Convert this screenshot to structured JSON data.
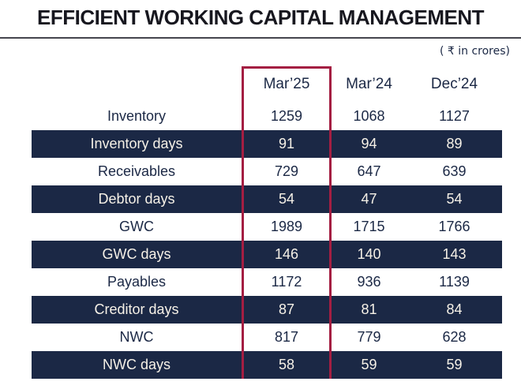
{
  "title": "EFFICIENT WORKING CAPITAL MANAGEMENT",
  "unit_note": "( ₹ in crores)",
  "table": {
    "columns": [
      "Mar’25",
      "Mar’24",
      "Dec’24"
    ],
    "highlighted_column": "Mar’25",
    "rows": [
      {
        "label": "Inventory",
        "values": [
          "1259",
          "1068",
          "1127"
        ]
      },
      {
        "label": "Inventory days",
        "values": [
          "91",
          "94",
          "89"
        ]
      },
      {
        "label": "Receivables",
        "values": [
          "729",
          "647",
          "639"
        ]
      },
      {
        "label": "Debtor days",
        "values": [
          "54",
          "47",
          "54"
        ]
      },
      {
        "label": "GWC",
        "values": [
          "1989",
          "1715",
          "1766"
        ]
      },
      {
        "label": "GWC days",
        "values": [
          "146",
          "140",
          "143"
        ]
      },
      {
        "label": "Payables",
        "values": [
          "1172",
          "936",
          "1139"
        ]
      },
      {
        "label": "Creditor days",
        "values": [
          "87",
          "81",
          "84"
        ]
      },
      {
        "label": "NWC",
        "values": [
          "817",
          "779",
          "628"
        ]
      },
      {
        "label": "NWC days",
        "values": [
          "58",
          "59",
          "59"
        ]
      }
    ]
  },
  "chart_data": {
    "type": "table",
    "title": "EFFICIENT WORKING CAPITAL MANAGEMENT",
    "unit": "₹ in crores",
    "columns": [
      "Mar’25",
      "Mar’24",
      "Dec’24"
    ],
    "highlighted_column": "Mar’25",
    "rows": [
      {
        "metric": "Inventory",
        "Mar25": 1259,
        "Mar24": 1068,
        "Dec24": 1127
      },
      {
        "metric": "Inventory days",
        "Mar25": 91,
        "Mar24": 94,
        "Dec24": 89
      },
      {
        "metric": "Receivables",
        "Mar25": 729,
        "Mar24": 647,
        "Dec24": 639
      },
      {
        "metric": "Debtor days",
        "Mar25": 54,
        "Mar24": 47,
        "Dec24": 54
      },
      {
        "metric": "GWC",
        "Mar25": 1989,
        "Mar24": 1715,
        "Dec24": 1766
      },
      {
        "metric": "GWC days",
        "Mar25": 146,
        "Mar24": 140,
        "Dec24": 143
      },
      {
        "metric": "Payables",
        "Mar25": 1172,
        "Mar24": 936,
        "Dec24": 1139
      },
      {
        "metric": "Creditor days",
        "Mar25": 87,
        "Mar24": 81,
        "Dec24": 84
      },
      {
        "metric": "NWC",
        "Mar25": 817,
        "Mar24": 779,
        "Dec24": 628
      },
      {
        "metric": "NWC days",
        "Mar25": 58,
        "Mar24": 59,
        "Dec24": 59
      }
    ],
    "layout_hints": {
      "striped_rows": "days metrics on navy background",
      "highlight_style": "maroon outline around Mar’25 column"
    }
  },
  "colors": {
    "navy": "#1b2845",
    "maroon": "#a41e42",
    "cream_text": "#f6f1e7",
    "title_ink": "#17171f",
    "rule": "#45454e"
  }
}
